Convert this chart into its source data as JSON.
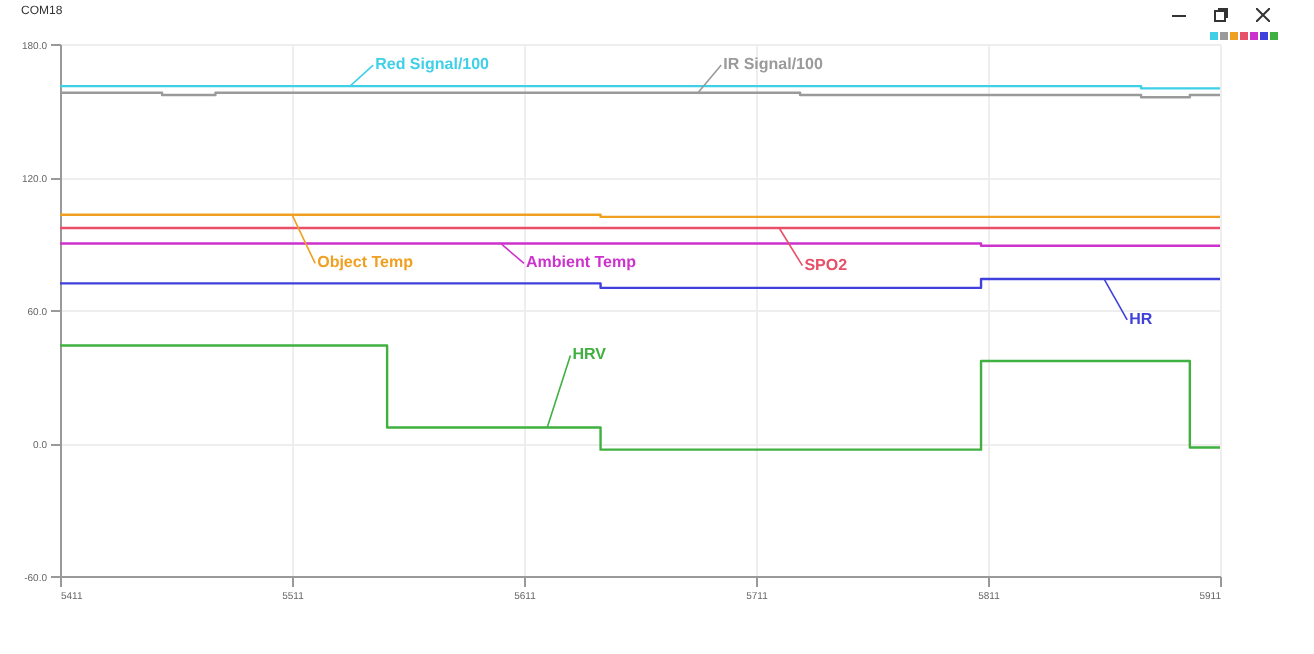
{
  "chart_data": {
    "type": "step",
    "title": "COM18",
    "xlim": [
      5411,
      5911
    ],
    "xticks": [
      5411,
      5511,
      5611,
      5711,
      5811,
      5911
    ],
    "ylim": [
      -60,
      180
    ],
    "yticks": [
      {
        "value": -60,
        "label": "-60.0"
      },
      {
        "value": 0,
        "label": "0.0"
      },
      {
        "value": 60,
        "label": "60.0"
      },
      {
        "value": 120,
        "label": "120.0"
      },
      {
        "value": 180,
        "label": "180.0"
      }
    ],
    "grid": true,
    "marker": "none",
    "line_style": "solid",
    "x": [
      5411,
      5455,
      5478,
      5552,
      5644,
      5730,
      5808,
      5877,
      5898,
      5911
    ],
    "series": [
      {
        "name": "Red Signal/100",
        "color": "#3fd0e8",
        "values": [
          161,
          161,
          161,
          161,
          161,
          161,
          161,
          160,
          160,
          160
        ]
      },
      {
        "name": "IR Signal/100",
        "color": "#9a9a9a",
        "values": [
          158,
          157,
          158,
          158,
          158,
          157,
          157,
          156,
          157,
          157
        ]
      },
      {
        "name": "Object Temp",
        "color": "#f0a020",
        "values": [
          103,
          103,
          103,
          103,
          102,
          102,
          102,
          102,
          102,
          102
        ]
      },
      {
        "name": "SPO2",
        "color": "#e8506a",
        "values": [
          97,
          97,
          97,
          97,
          97,
          97,
          97,
          97,
          97,
          97
        ]
      },
      {
        "name": "Ambient Temp",
        "color": "#cc33cc",
        "values": [
          90,
          90,
          90,
          90,
          90,
          90,
          89,
          89,
          89,
          89
        ]
      },
      {
        "name": "HR",
        "color": "#4040dd",
        "values": [
          72,
          72,
          72,
          72,
          70,
          70,
          74,
          74,
          74,
          74
        ]
      },
      {
        "name": "HRV",
        "color": "#40b040",
        "values": [
          44,
          44,
          44,
          7,
          -3,
          -3,
          37,
          37,
          -2,
          -2
        ]
      }
    ]
  }
}
